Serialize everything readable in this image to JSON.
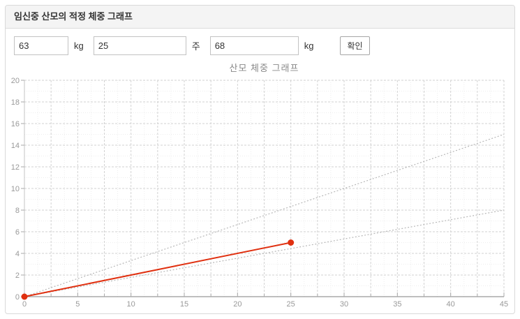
{
  "panel": {
    "title": "임신중 산모의 적정 체중 그래프"
  },
  "controls": {
    "weight_before": {
      "value": "63",
      "unit": "kg"
    },
    "weeks": {
      "value": "25",
      "unit": "주"
    },
    "current_weight": {
      "value": "68",
      "unit": "kg"
    },
    "submit_label": "확인"
  },
  "chart_data": {
    "type": "line",
    "title": "산모 체중 그래프",
    "xlabel": "",
    "ylabel": "",
    "xlim": [
      0,
      45
    ],
    "ylim": [
      0,
      20
    ],
    "x_ticks": [
      0,
      5,
      10,
      15,
      20,
      25,
      30,
      35,
      40,
      45
    ],
    "y_ticks": [
      0,
      2,
      4,
      6,
      8,
      10,
      12,
      14,
      16,
      18,
      20
    ],
    "grid": {
      "on": true,
      "x_major": 2.5,
      "x_minor": 1.25,
      "y_major": 2,
      "y_minor": 1,
      "style": "dashed"
    },
    "legend": "none",
    "series": [
      {
        "name": "upper-guide-line",
        "style": "dotted",
        "color": "#b8b8b8",
        "width": 1.2,
        "points": [
          [
            0,
            0
          ],
          [
            45,
            15
          ]
        ],
        "markers": false
      },
      {
        "name": "lower-guide-line",
        "style": "dotted",
        "color": "#b8b8b8",
        "width": 1.2,
        "points": [
          [
            0,
            0
          ],
          [
            45,
            8
          ]
        ],
        "markers": false
      },
      {
        "name": "actual-weight-gain",
        "style": "solid",
        "color": "#e03010",
        "width": 2,
        "points": [
          [
            0,
            0
          ],
          [
            25,
            5
          ]
        ],
        "markers": true,
        "marker_radius": 4.5
      }
    ]
  },
  "colors": {
    "header_bg": "#f4f4f4",
    "panel_border": "#d9d9d9",
    "x_axis": "#999999",
    "y_axis": "#c4c4c4",
    "grid_major": "#d2d2d2",
    "grid_minor": "#ededed",
    "tick": "#aaaaaa",
    "tick_label": "#999999",
    "chart_title": "#888888"
  }
}
